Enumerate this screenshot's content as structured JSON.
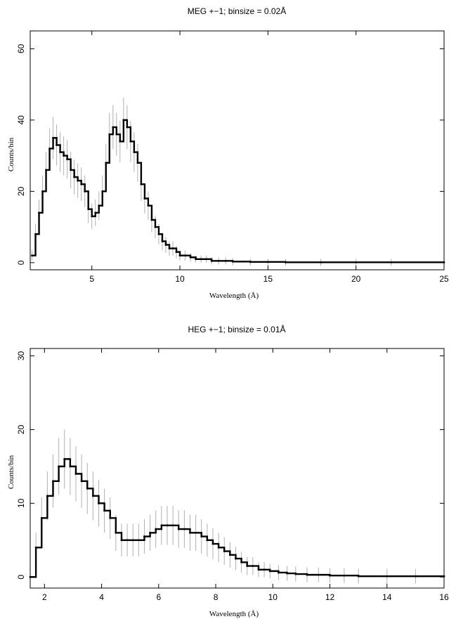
{
  "chart_data": [
    {
      "type": "line",
      "title": "MEG +−1; binsize = 0.02Å",
      "xlabel": "Wavelength (Å)",
      "ylabel": "Counts/bin",
      "xlim": [
        1.5,
        25
      ],
      "ylim": [
        -2,
        65
      ],
      "xticks": [
        5,
        10,
        15,
        20,
        25
      ],
      "yticks": [
        0,
        20,
        40,
        60
      ],
      "grid": false,
      "series": [
        {
          "values_x": [
            1.6,
            1.8,
            2.0,
            2.2,
            2.4,
            2.6,
            2.8,
            3.0,
            3.2,
            3.4,
            3.6,
            3.8,
            4.0,
            4.2,
            4.4,
            4.6,
            4.8,
            5.0,
            5.2,
            5.4,
            5.6,
            5.8,
            6.0,
            6.2,
            6.4,
            6.6,
            6.8,
            7.0,
            7.2,
            7.4,
            7.6,
            7.8,
            8.0,
            8.2,
            8.4,
            8.6,
            8.8,
            9.0,
            9.2,
            9.4,
            9.6,
            9.8,
            10.0,
            10.3,
            10.6,
            10.9,
            11.2,
            11.5,
            11.8,
            12.2,
            12.6,
            13.0,
            14.0,
            15.0,
            16.0,
            18.0,
            20.0,
            22.0,
            25.0
          ],
          "values_y": [
            2,
            8,
            14,
            20,
            26,
            32,
            35,
            33,
            31,
            30,
            29,
            26,
            24,
            23,
            22,
            20,
            15,
            13,
            14,
            16,
            20,
            28,
            36,
            38,
            36,
            34,
            40,
            38,
            34,
            31,
            28,
            22,
            18,
            16,
            12,
            10,
            8,
            6,
            5,
            4,
            4,
            3,
            2,
            2,
            1.5,
            1,
            1,
            1,
            0.5,
            0.5,
            0.5,
            0.3,
            0.2,
            0.2,
            0.1,
            0.1,
            0.1,
            0.1,
            0.1
          ]
        }
      ]
    },
    {
      "type": "line",
      "title": "HEG +−1; binsize = 0.01Å",
      "xlabel": "Wavelength (Å)",
      "ylabel": "Counts/bin",
      "xlim": [
        1.5,
        16
      ],
      "ylim": [
        -1.5,
        31
      ],
      "xticks": [
        2,
        4,
        6,
        8,
        10,
        12,
        14,
        16
      ],
      "yticks": [
        0,
        10,
        20,
        30
      ],
      "grid": false,
      "series": [
        {
          "values_x": [
            1.5,
            1.7,
            1.9,
            2.1,
            2.3,
            2.5,
            2.7,
            2.9,
            3.1,
            3.3,
            3.5,
            3.7,
            3.9,
            4.1,
            4.3,
            4.5,
            4.7,
            4.9,
            5.1,
            5.3,
            5.5,
            5.7,
            5.9,
            6.1,
            6.3,
            6.5,
            6.7,
            6.9,
            7.1,
            7.3,
            7.5,
            7.7,
            7.9,
            8.1,
            8.3,
            8.5,
            8.7,
            8.9,
            9.1,
            9.3,
            9.5,
            9.7,
            9.9,
            10.2,
            10.5,
            10.8,
            11.2,
            11.6,
            12.0,
            12.5,
            13.0,
            14.0,
            15.0,
            16.0
          ],
          "values_y": [
            0,
            4,
            8,
            11,
            13,
            15,
            16,
            15,
            14,
            13,
            12,
            11,
            10,
            9,
            8,
            6,
            5,
            5,
            5,
            5,
            5.5,
            6,
            6.5,
            7,
            7,
            7,
            6.5,
            6.5,
            6,
            6,
            5.5,
            5,
            4.5,
            4,
            3.5,
            3,
            2.5,
            2,
            1.5,
            1.5,
            1,
            1,
            0.8,
            0.6,
            0.5,
            0.4,
            0.3,
            0.3,
            0.2,
            0.2,
            0.1,
            0.1,
            0.1,
            0.1
          ]
        }
      ]
    }
  ]
}
